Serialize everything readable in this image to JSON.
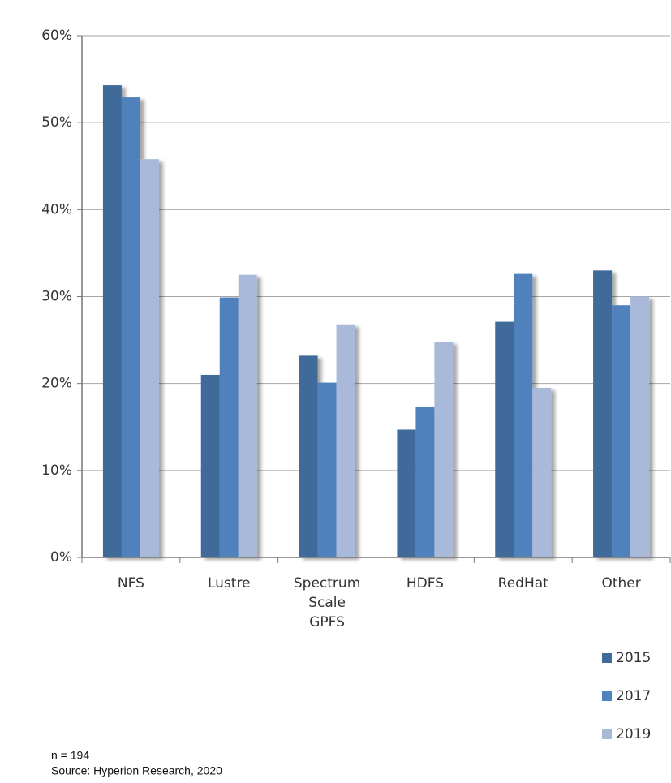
{
  "chart_data": {
    "type": "bar",
    "categories": [
      "NFS",
      "Lustre",
      "Spectrum Scale GPFS",
      "HDFS",
      "RedHat",
      "Other"
    ],
    "series": [
      {
        "name": "2015",
        "color": "#3f6a9a",
        "values": [
          54.3,
          21.0,
          23.2,
          14.7,
          27.1,
          33.0
        ]
      },
      {
        "name": "2017",
        "color": "#4f81bd",
        "values": [
          52.9,
          29.9,
          20.1,
          17.3,
          32.6,
          29.0
        ]
      },
      {
        "name": "2019",
        "color": "#a9b9d9",
        "values": [
          45.8,
          32.5,
          26.8,
          24.8,
          19.5,
          30.0
        ]
      }
    ],
    "ylim": [
      0,
      60
    ],
    "yticks": [
      {
        "value": 0,
        "label": "0%"
      },
      {
        "value": 10,
        "label": "10%"
      },
      {
        "value": 20,
        "label": "20%"
      },
      {
        "value": 30,
        "label": "30%"
      },
      {
        "value": 40,
        "label": "40%"
      },
      {
        "value": 50,
        "label": "50%"
      },
      {
        "value": 60,
        "label": "60%"
      }
    ],
    "grid": true,
    "legend": "bottom-right",
    "notes": [
      "n = 194",
      "Source: Hyperion Research, 2020"
    ]
  }
}
